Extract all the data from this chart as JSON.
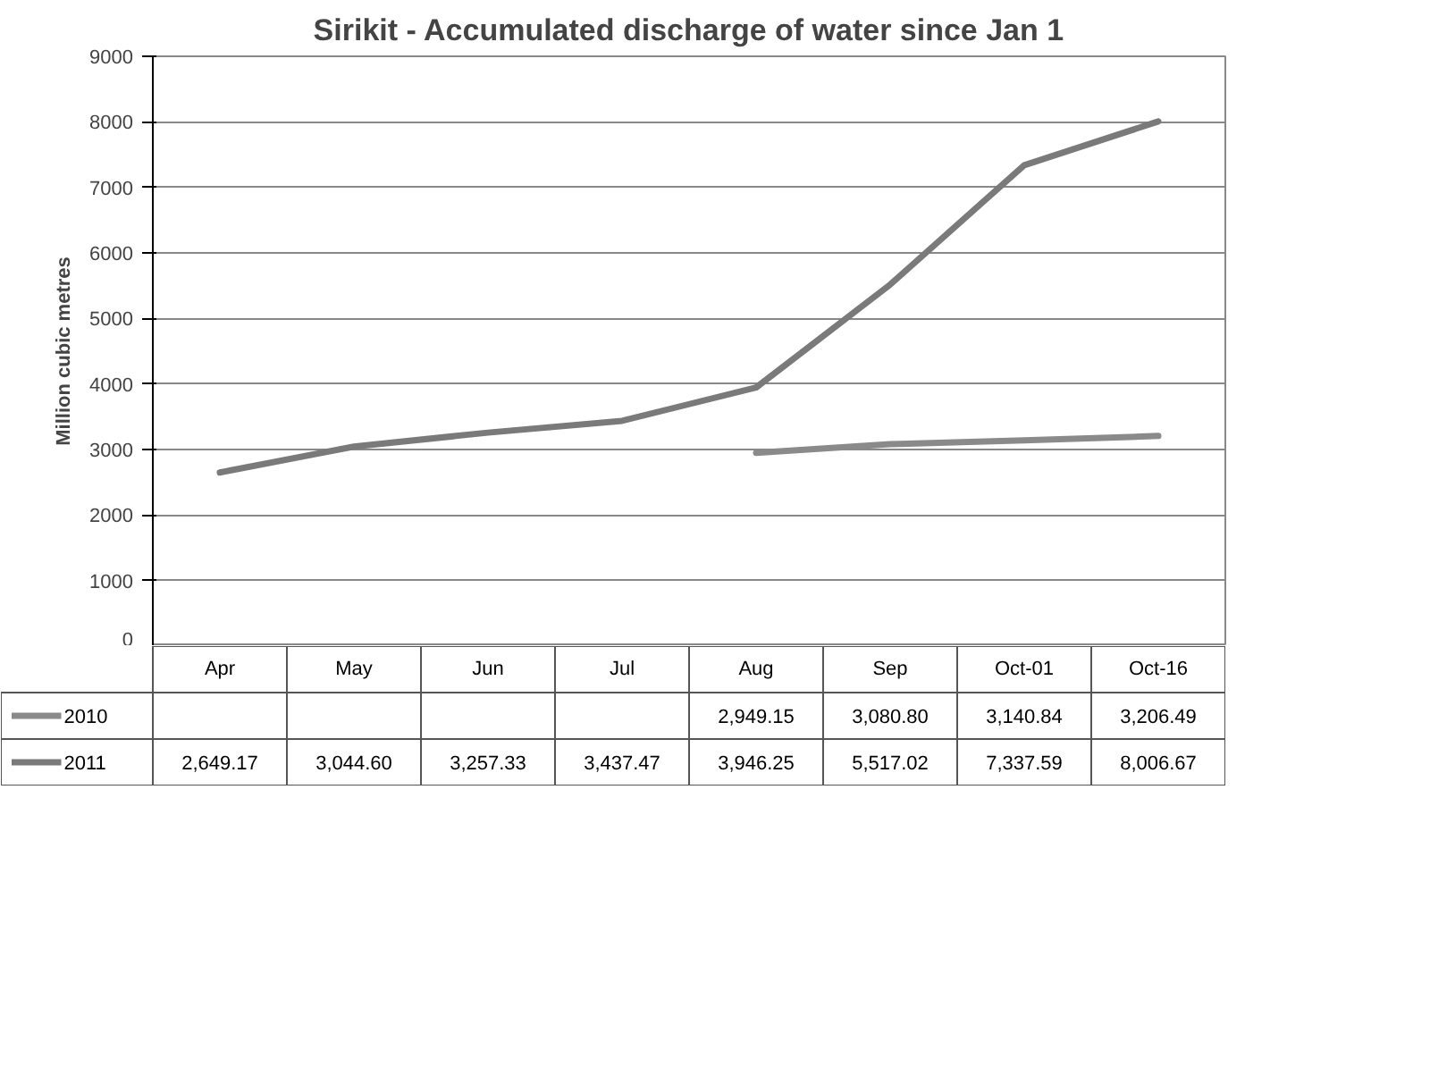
{
  "chart_data": {
    "type": "line",
    "title": "Sirikit - Accumulated discharge of water since Jan 1",
    "ylabel": "Million cubic metres",
    "categories": [
      "Apr",
      "May",
      "Jun",
      "Jul",
      "Aug",
      "Sep",
      "Oct-01",
      "Oct-16"
    ],
    "series": [
      {
        "name": "2010",
        "color": "#8a8a8a",
        "values": [
          null,
          null,
          null,
          null,
          2949.15,
          3080.8,
          3140.84,
          3206.49
        ],
        "value_labels": [
          null,
          null,
          null,
          null,
          "2,949.15",
          "3,080.80",
          "3,140.84",
          "3,206.49"
        ]
      },
      {
        "name": "2011",
        "color": "#7a7a7a",
        "values": [
          2649.17,
          3044.6,
          3257.33,
          3437.47,
          3946.25,
          5517.02,
          7337.59,
          8006.67
        ],
        "value_labels": [
          "2,649.17",
          "3,044.60",
          "3,257.33",
          "3,437.47",
          "3,946.25",
          "5,517.02",
          "7,337.59",
          "8,006.67"
        ]
      }
    ],
    "ylim": [
      0,
      9000
    ],
    "yticks": [
      0,
      1000,
      2000,
      3000,
      4000,
      5000,
      6000,
      7000,
      8000,
      9000
    ],
    "grid": "y",
    "legend": "bottom",
    "marker": "none",
    "line_style": "solid"
  }
}
